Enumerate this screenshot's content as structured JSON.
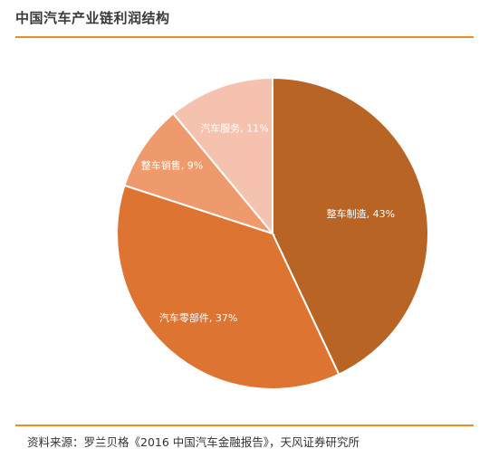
{
  "title": "中国汽车产业链利润结构",
  "source": "资料来源：罗兰贝格《2016 中国汽车金融报告》，天风证券研究所",
  "chart_data": {
    "type": "pie",
    "slices": [
      {
        "name": "整车制造",
        "value": 43,
        "label": "整车制造, 43%",
        "color": "#b86424"
      },
      {
        "name": "汽车零部件",
        "value": 37,
        "label": "汽车零部件, 37%",
        "color": "#dd7432"
      },
      {
        "name": "整车销售",
        "value": 9,
        "label": "整车销售, 9%",
        "color": "#ee9a6c"
      },
      {
        "name": "汽车服务",
        "value": 11,
        "label": "汽车服务, 11%",
        "color": "#f4c2ae"
      }
    ]
  }
}
